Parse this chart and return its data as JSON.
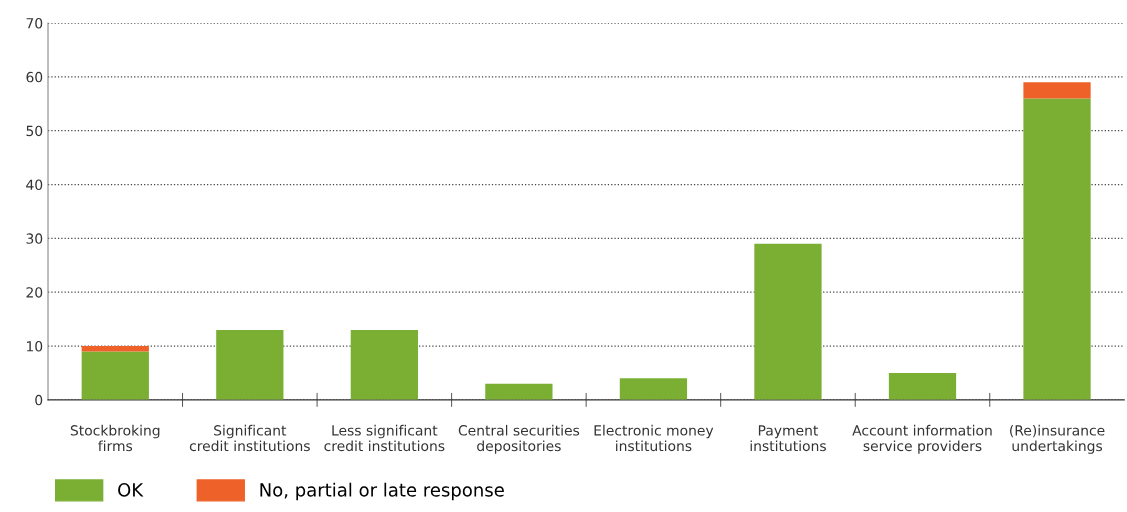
{
  "chart_data": {
    "type": "bar",
    "stacked": true,
    "categories": [
      "Stockbroking\nfirms",
      "Significant\ncredit institutions",
      "Less significant\ncredit institutions",
      "Central securities\ndepositories",
      "Electronic money\ninstitutions",
      "Payment\ninstitutions",
      "Account information\nservice providers",
      "(Re)insurance\nundertakings"
    ],
    "series": [
      {
        "name": "OK",
        "color": "#7aaf34",
        "values": [
          9,
          13,
          13,
          3,
          4,
          29,
          5,
          56
        ]
      },
      {
        "name": "No, partial or late response",
        "color": "#ee6229",
        "values": [
          1,
          0,
          0,
          0,
          0,
          0,
          0,
          3
        ]
      }
    ],
    "ylim": [
      0,
      70
    ],
    "yticks": [
      0,
      10,
      20,
      30,
      40,
      50,
      60,
      70
    ],
    "grid": "y",
    "legend": "bottom left"
  }
}
